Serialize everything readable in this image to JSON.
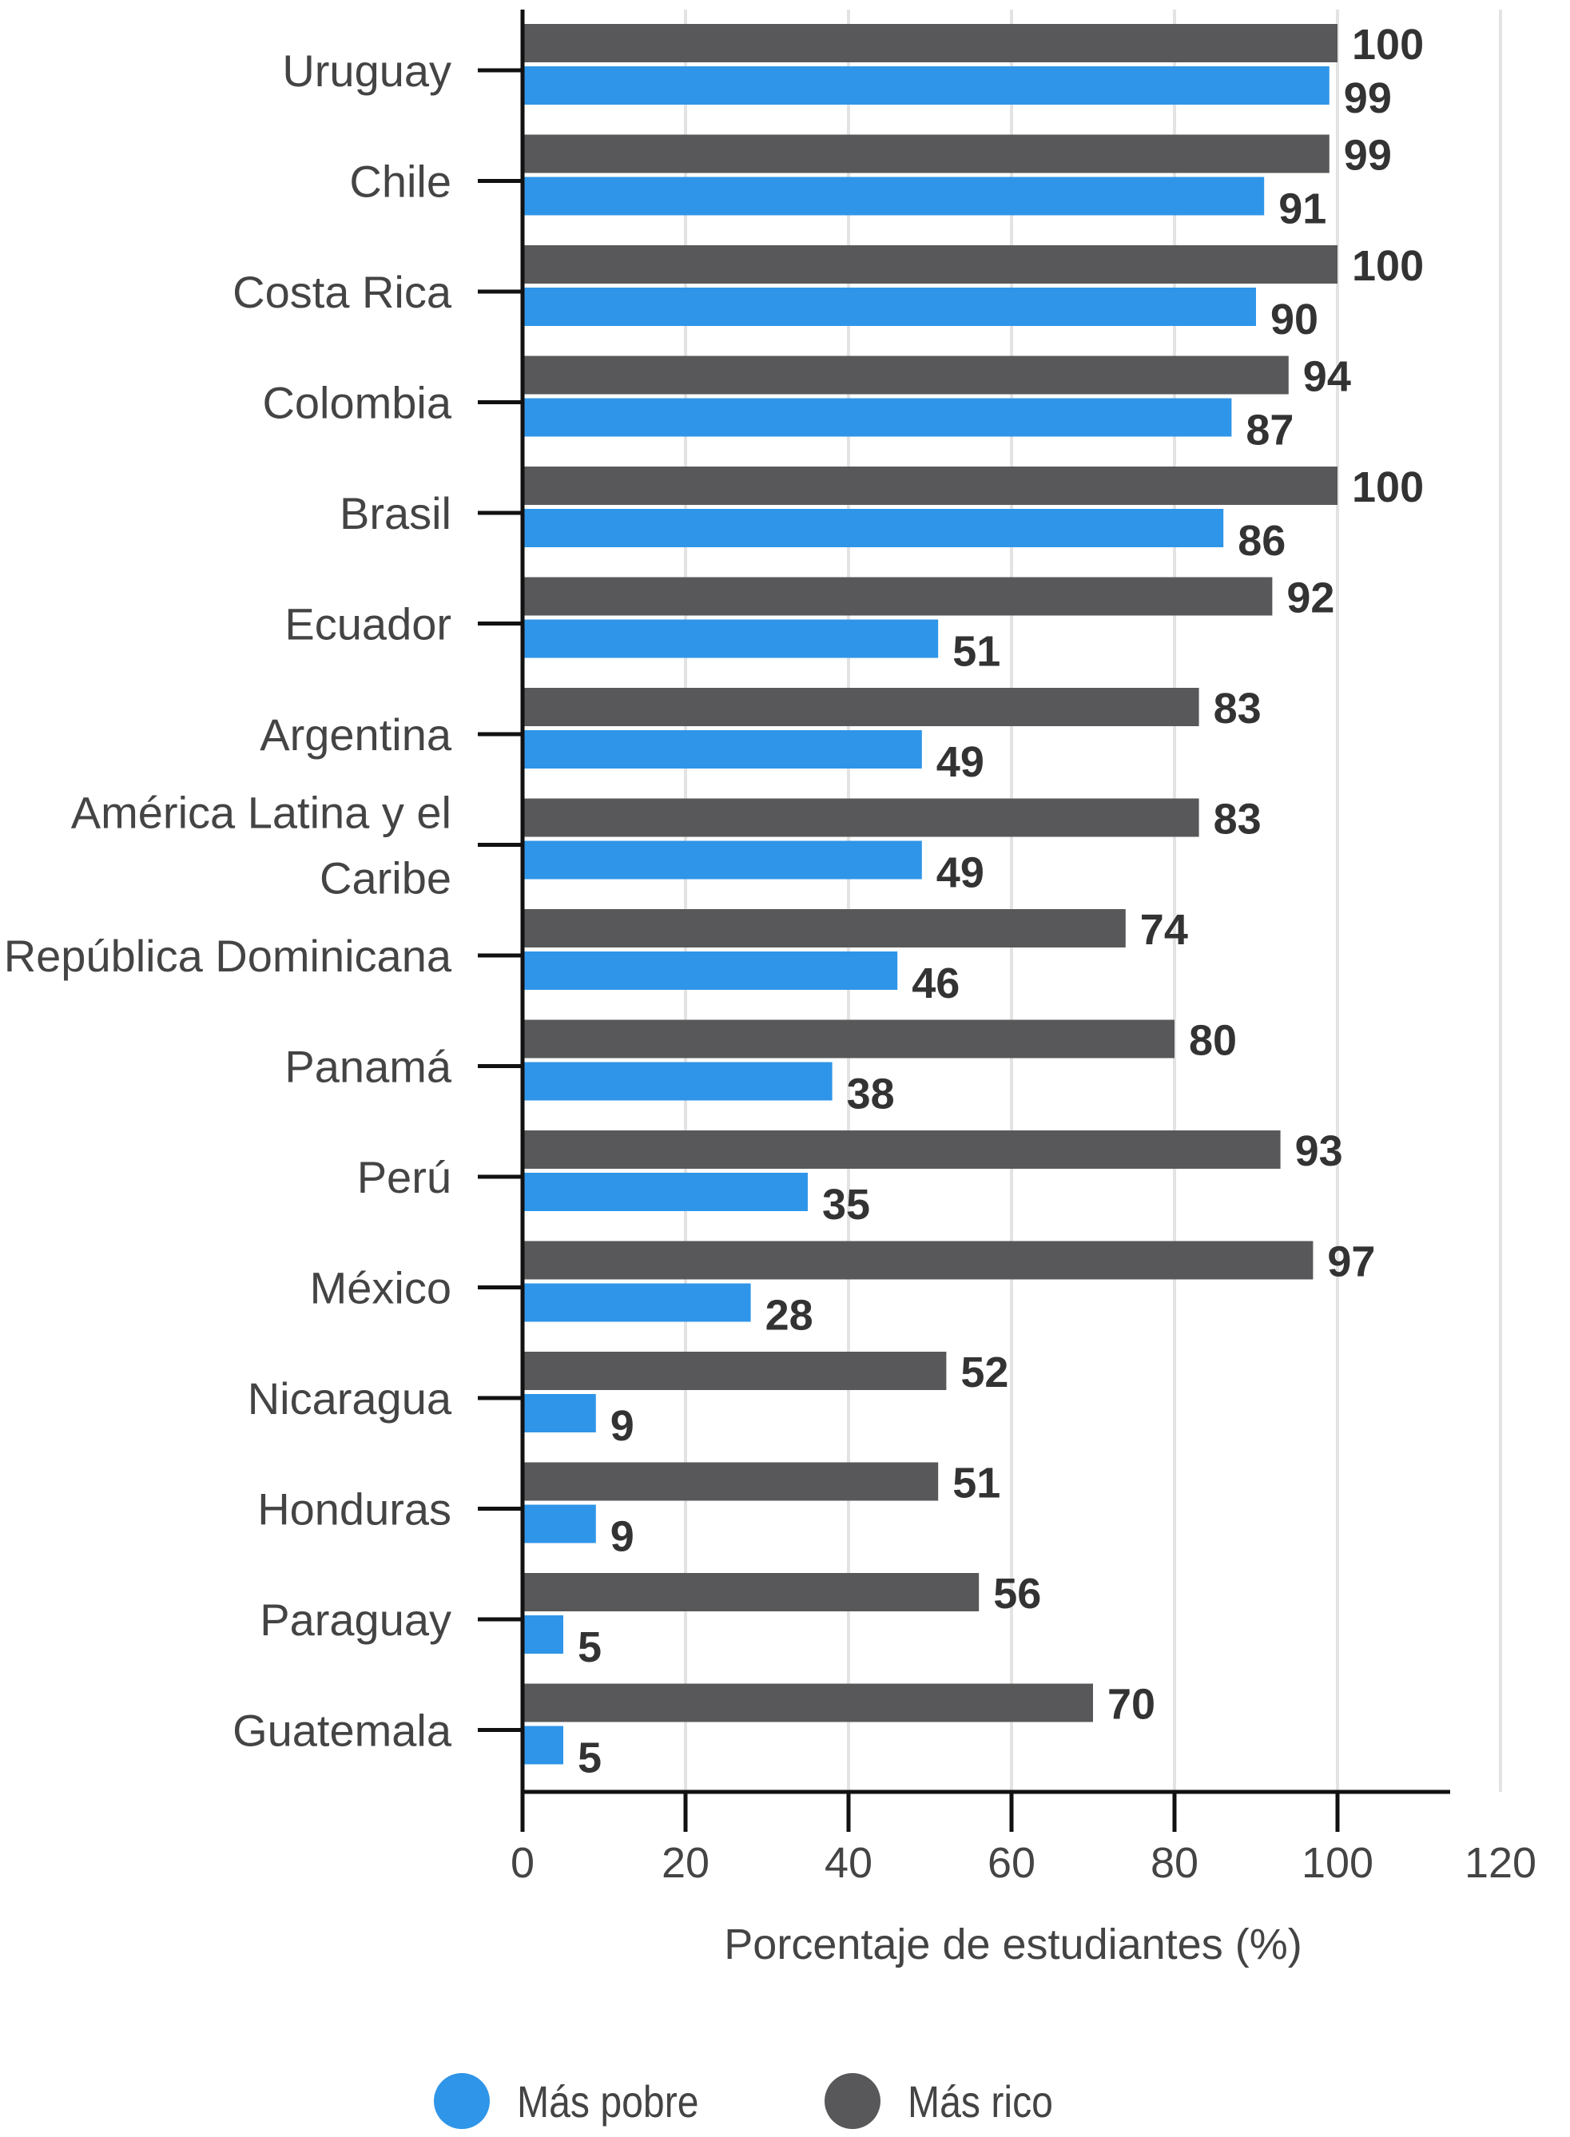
{
  "chart_data": {
    "type": "bar",
    "orientation": "horizontal",
    "categories": [
      "Uruguay",
      "Chile",
      "Costa Rica",
      "Colombia",
      "Brasil",
      "Ecuador",
      "Argentina",
      "América Latina y el Caribe",
      "República Dominicana",
      "Panamá",
      "Perú",
      "México",
      "Nicaragua",
      "Honduras",
      "Paraguay",
      "Guatemala"
    ],
    "category_lines": [
      [
        "Uruguay"
      ],
      [
        "Chile"
      ],
      [
        "Costa Rica"
      ],
      [
        "Colombia"
      ],
      [
        "Brasil"
      ],
      [
        "Ecuador"
      ],
      [
        "Argentina"
      ],
      [
        "América Latina y el",
        "Caribe"
      ],
      [
        "República Dominicana"
      ],
      [
        "Panamá"
      ],
      [
        "Perú"
      ],
      [
        "México"
      ],
      [
        "Nicaragua"
      ],
      [
        "Honduras"
      ],
      [
        "Paraguay"
      ],
      [
        "Guatemala"
      ]
    ],
    "series": [
      {
        "name": "Más rico",
        "color": "#58585a",
        "values": [
          100,
          99,
          100,
          94,
          100,
          92,
          83,
          83,
          74,
          80,
          93,
          97,
          52,
          51,
          56,
          70
        ]
      },
      {
        "name": "Más pobre",
        "color": "#2f95e8",
        "values": [
          99,
          91,
          90,
          87,
          86,
          51,
          49,
          49,
          46,
          38,
          35,
          28,
          9,
          9,
          5,
          5
        ]
      }
    ],
    "xlabel": "Porcentaje de estudiantes (%)",
    "ylabel": "",
    "xlim": [
      0,
      120
    ],
    "xticks": [
      "0",
      "20",
      "40",
      "60",
      "80",
      "100",
      "120"
    ],
    "grid": true,
    "legend_position": "bottom"
  },
  "legend": [
    {
      "label": "Más pobre",
      "color": "#2f95e8"
    },
    {
      "label": "Más rico",
      "color": "#58585a"
    }
  ]
}
